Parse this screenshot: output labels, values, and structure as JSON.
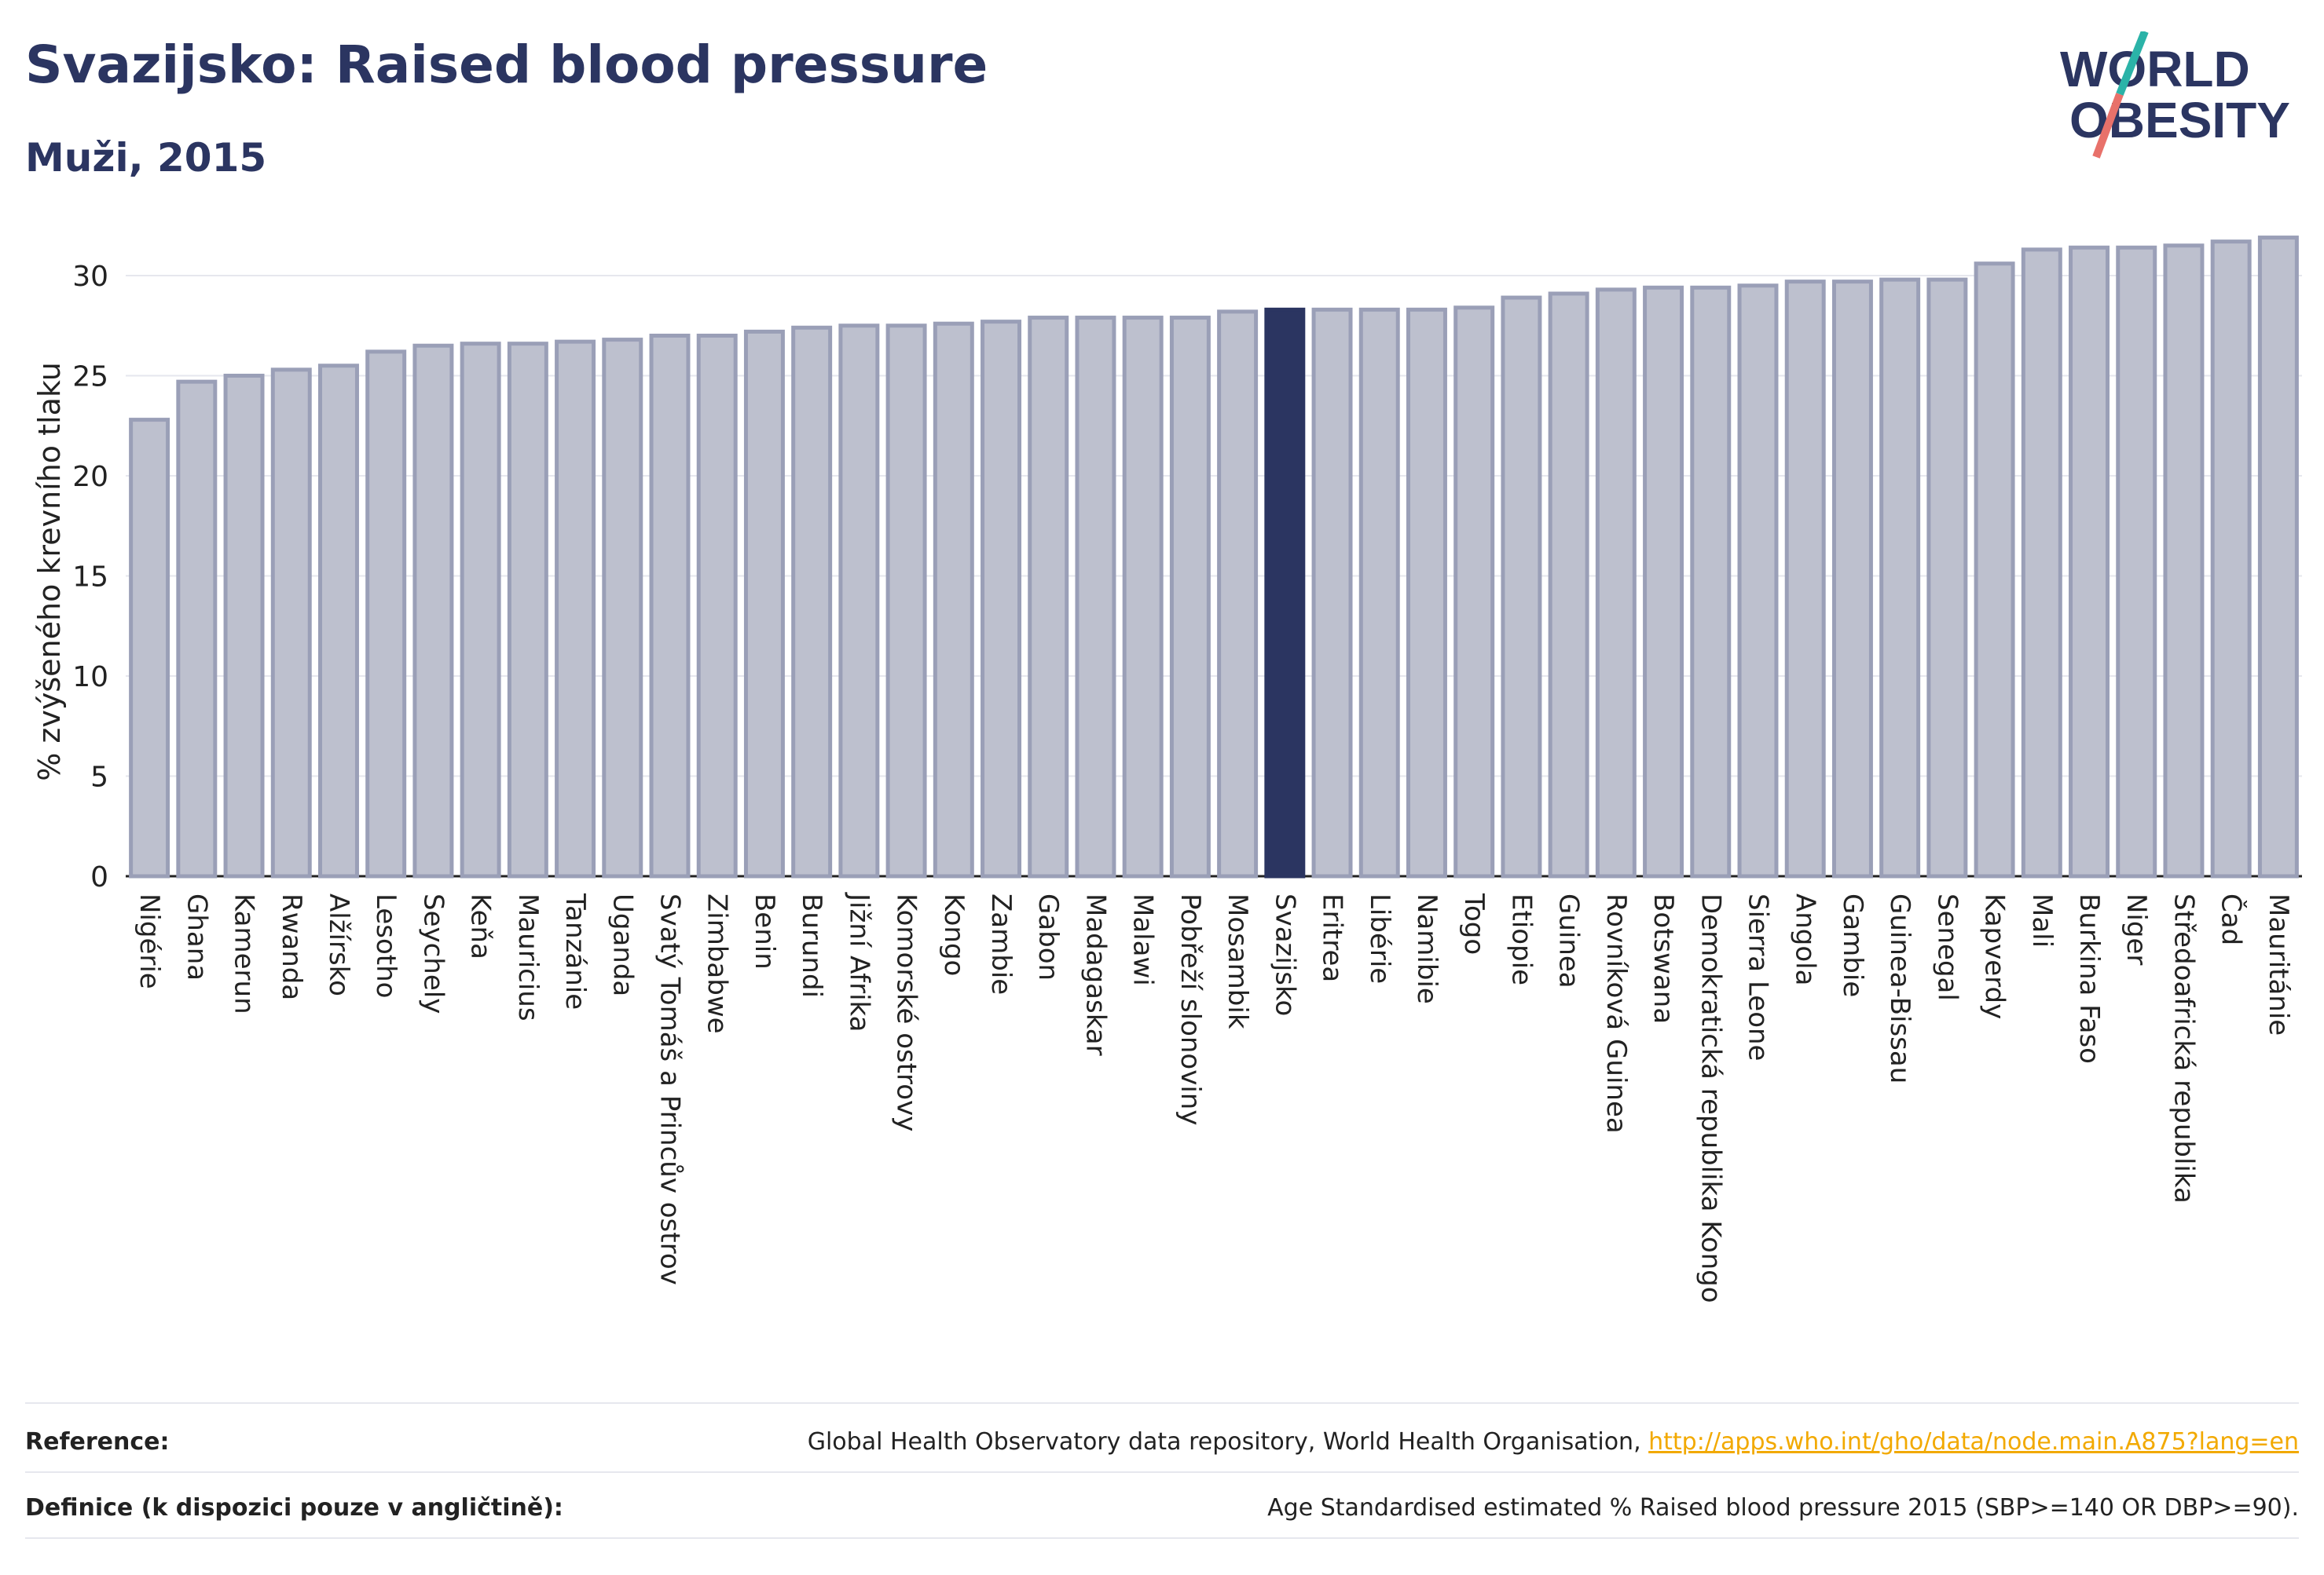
{
  "header": {
    "title": "Svazijsko: Raised blood pressure",
    "subtitle": "Muži, 2015"
  },
  "logo": {
    "line1": "WORLD",
    "line2": "OBESITY",
    "colors": {
      "text": "#2b3561",
      "slash_top": "#2bb3a8",
      "slash_bottom": "#e8716a"
    }
  },
  "colors": {
    "bar_fill": "#bdc0ce",
    "bar_stroke": "#9a9fb7",
    "highlight": "#2b3561",
    "grid": "#e6e7ee",
    "axis_text": "#222222"
  },
  "chart_data": {
    "type": "bar",
    "ylabel": "% zvýšeného krevního tlaku",
    "xlabel": "",
    "ylim": [
      0,
      32
    ],
    "yticks": [
      0,
      5,
      10,
      15,
      20,
      25,
      30
    ],
    "grid": true,
    "highlight": "Svazijsko",
    "categories": [
      "Nigérie",
      "Ghana",
      "Kamerun",
      "Rwanda",
      "Alžírsko",
      "Lesotho",
      "Seychely",
      "Keňa",
      "Mauricius",
      "Tanzánie",
      "Uganda",
      "Svatý Tomáš a Princův ostrov",
      "Zimbabwe",
      "Benin",
      "Burundi",
      "Jižní Afrika",
      "Komorské ostrovy",
      "Kongo",
      "Zambie",
      "Gabon",
      "Madagaskar",
      "Malawi",
      "Pobřeží slonoviny",
      "Mosambik",
      "Svazijsko",
      "Eritrea",
      "Libérie",
      "Namibie",
      "Togo",
      "Etiopie",
      "Guinea",
      "Rovníková Guinea",
      "Botswana",
      "Demokratická republika Kongo",
      "Sierra Leone",
      "Angola",
      "Gambie",
      "Guinea-Bissau",
      "Senegal",
      "Kapverdy",
      "Mali",
      "Burkina Faso",
      "Niger",
      "Středoafrická republika",
      "Čad",
      "Mauritánie"
    ],
    "values": [
      22.8,
      24.7,
      25.0,
      25.3,
      25.5,
      26.2,
      26.5,
      26.6,
      26.6,
      26.7,
      26.8,
      27.0,
      27.0,
      27.2,
      27.4,
      27.5,
      27.5,
      27.6,
      27.7,
      27.9,
      27.9,
      27.9,
      27.9,
      28.2,
      28.3,
      28.3,
      28.3,
      28.3,
      28.4,
      28.9,
      29.1,
      29.3,
      29.4,
      29.4,
      29.5,
      29.7,
      29.7,
      29.8,
      29.8,
      30.6,
      31.3,
      31.4,
      31.4,
      31.5,
      31.7,
      31.9
    ]
  },
  "footer": {
    "reference_label": "Reference:",
    "reference_text": "Global Health Observatory data repository, World Health Organisation, ",
    "reference_link": "http://apps.who.int/gho/data/node.main.A875?lang=en",
    "definition_label": "Definice (k dispozici pouze v angličtině):",
    "definition_text": "Age Standardised estimated % Raised blood pressure 2015 (SBP>=140 OR DBP>=90)."
  }
}
